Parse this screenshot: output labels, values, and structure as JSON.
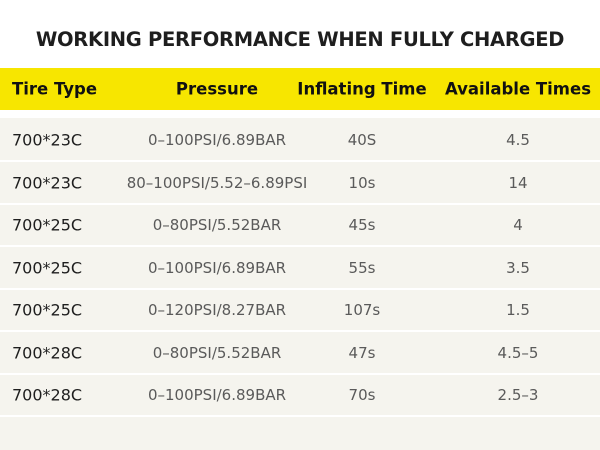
{
  "header": {
    "title": "WORKING PERFORMANCE WHEN FULLY CHARGED"
  },
  "table": {
    "columns": [
      "Tire Type",
      "Pressure",
      "Inflating Time",
      "Available Times"
    ],
    "rows": [
      [
        "700*23C",
        "0–100PSI/6.89BAR",
        "40S",
        "4.5"
      ],
      [
        "700*23C",
        "80–100PSI/5.52–6.89PSI",
        "10s",
        "14"
      ],
      [
        "700*25C",
        "0–80PSI/5.52BAR",
        "45s",
        "4"
      ],
      [
        "700*25C",
        "0–100PSI/6.89BAR",
        "55s",
        "3.5"
      ],
      [
        "700*25C",
        "0–120PSI/8.27BAR",
        "107s",
        "1.5"
      ],
      [
        "700*28C",
        "0–80PSI/5.52BAR",
        "47s",
        "4.5–5"
      ],
      [
        "700*28C",
        "0–100PSI/6.89BAR",
        "70s",
        "2.5–3"
      ]
    ]
  }
}
